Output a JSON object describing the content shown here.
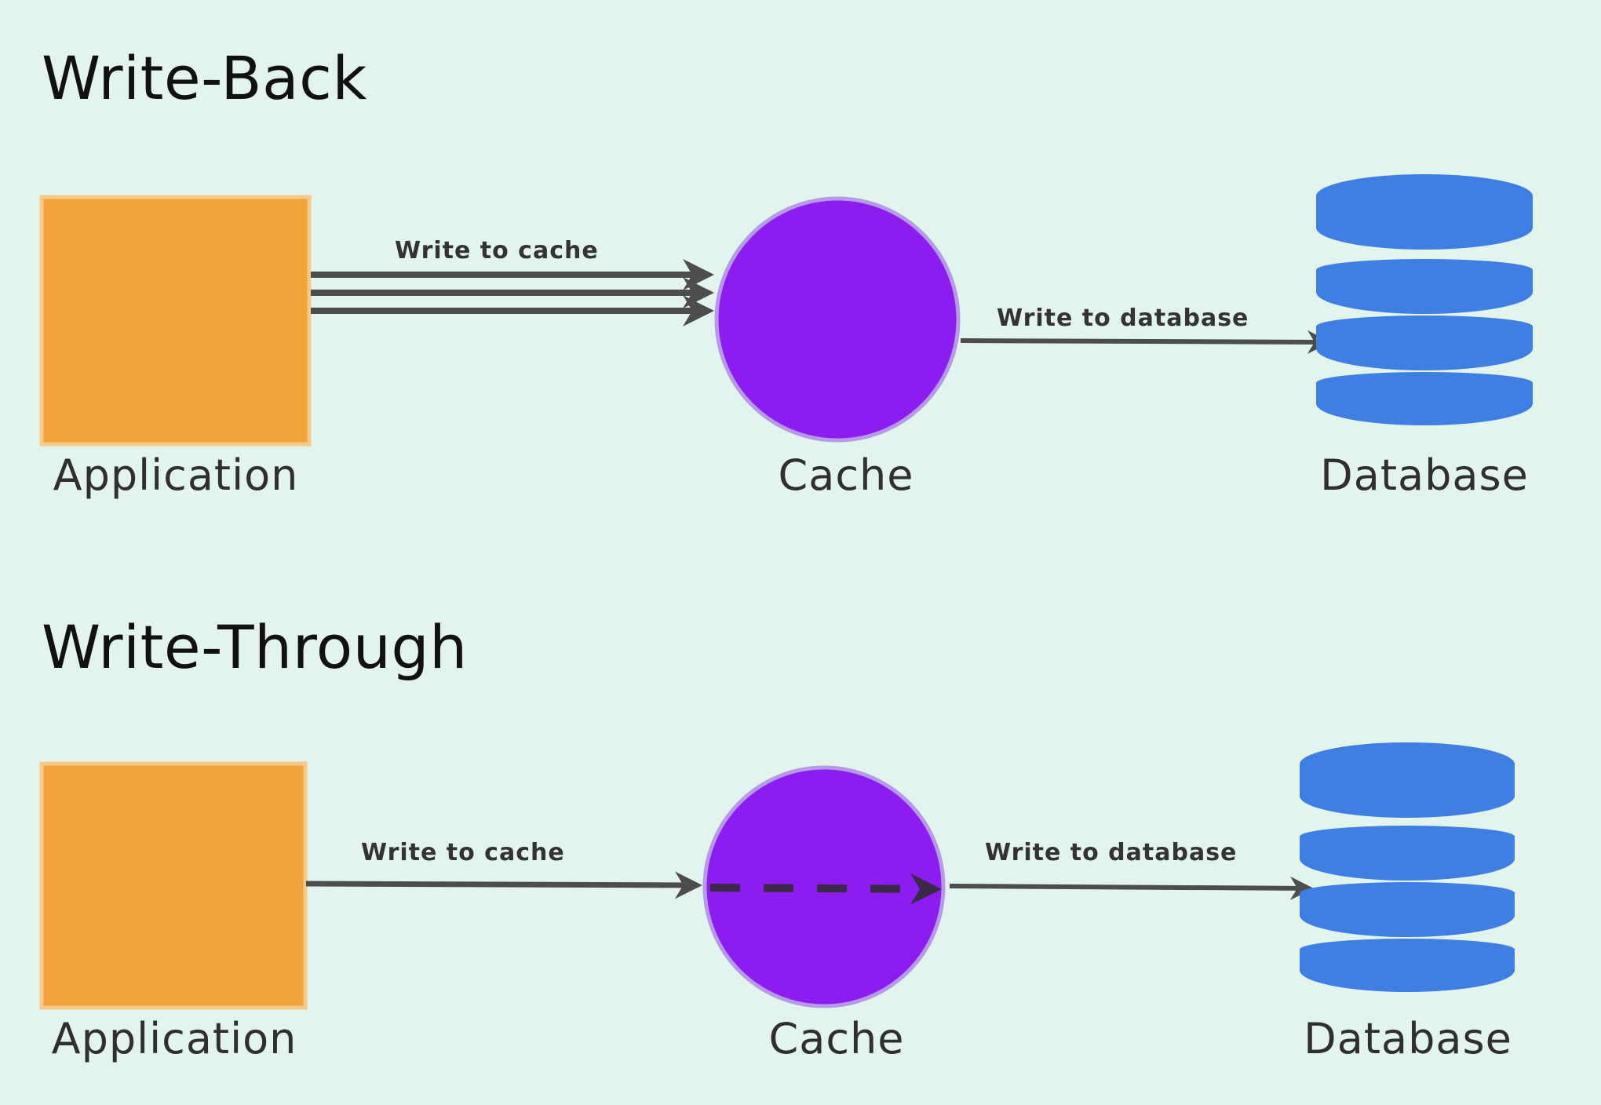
{
  "write_back": {
    "title": "Write-Back",
    "nodes": {
      "application": "Application",
      "cache": "Cache",
      "database": "Database"
    },
    "edges": {
      "app_to_cache": "Write to cache",
      "cache_to_db": "Write to database"
    }
  },
  "write_through": {
    "title": "Write-Through",
    "nodes": {
      "application": "Application",
      "cache": "Cache",
      "database": "Database"
    },
    "edges": {
      "app_to_cache": "Write to cache",
      "cache_to_db": "Write to database"
    }
  },
  "colors": {
    "background": "#e2f4ec",
    "application": "#f0a43a",
    "application_border": "#f9c98a",
    "cache": "#8d1cf0",
    "cache_border": "#b59ae8",
    "database": "#3f7ee2",
    "arrow": "#4d4d4d",
    "dashed_arrow": "#3a2a48"
  },
  "icons": {
    "application": "square-box-icon",
    "cache": "circle-icon",
    "database": "database-cylinder-icon"
  }
}
